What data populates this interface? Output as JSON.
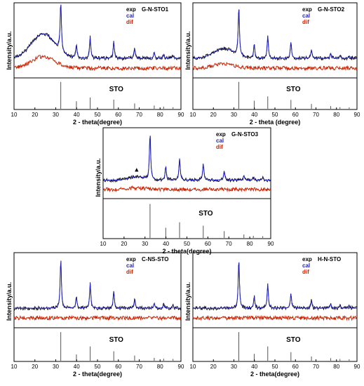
{
  "chart_data": [
    {
      "type": "line",
      "panel_id": "G-N-STO1",
      "sample_label": "G-N-STO1",
      "legend": {
        "exp": "exp",
        "cal": "cal",
        "dif": "dif",
        "placement": "top-right"
      },
      "ylabel": "Intensity/a.u.",
      "xlabel": "2 - theta(degree)",
      "reference_label": "STO",
      "xlim": [
        10,
        90
      ],
      "xticks": [
        "10",
        "20",
        "30",
        "40",
        "50",
        "60",
        "70",
        "80",
        "90"
      ],
      "amorphous_hump": {
        "center": 24,
        "width": 8,
        "height": 0.55
      },
      "marker": null,
      "colors": {
        "exp": "#000000",
        "cal": "#1f1fbf",
        "dif": "#cc2200",
        "ref": "#555555"
      },
      "peaks": [
        {
          "x": 32.4,
          "h": 1.0
        },
        {
          "x": 39.9,
          "h": 0.28
        },
        {
          "x": 46.5,
          "h": 0.42
        },
        {
          "x": 57.8,
          "h": 0.34
        },
        {
          "x": 67.8,
          "h": 0.2
        },
        {
          "x": 77.2,
          "h": 0.12
        },
        {
          "x": 81.7,
          "h": 0.08
        },
        {
          "x": 86.2,
          "h": 0.06
        }
      ]
    },
    {
      "type": "line",
      "panel_id": "G-N-STO2",
      "sample_label": "G-N-STO2",
      "legend": {
        "exp": "exp",
        "cal": "cal",
        "dif": "dif",
        "placement": "top-right"
      },
      "ylabel": "Intensity/a.u.",
      "xlabel": "2 - theta (degree)",
      "reference_label": "STO",
      "xlim": [
        10,
        90
      ],
      "xticks": [
        "10",
        "20",
        "30",
        "40",
        "50",
        "60",
        "70",
        "80",
        "90"
      ],
      "amorphous_hump": {
        "center": 25,
        "width": 7,
        "height": 0.22
      },
      "marker": null,
      "colors": {
        "exp": "#000000",
        "cal": "#1f1fbf",
        "dif": "#cc2200",
        "ref": "#555555"
      },
      "peaks": [
        {
          "x": 32.4,
          "h": 1.0
        },
        {
          "x": 39.9,
          "h": 0.3
        },
        {
          "x": 46.5,
          "h": 0.46
        },
        {
          "x": 57.8,
          "h": 0.33
        },
        {
          "x": 67.8,
          "h": 0.18
        },
        {
          "x": 77.2,
          "h": 0.1
        },
        {
          "x": 81.7,
          "h": 0.06
        },
        {
          "x": 86.2,
          "h": 0.05
        }
      ]
    },
    {
      "type": "line",
      "panel_id": "G-N-STO3",
      "sample_label": "G-N-STO3",
      "legend": {
        "exp": "exp",
        "cal": "cal",
        "dif": "dif",
        "placement": "top-right"
      },
      "ylabel": "Intensity/a.u.",
      "xlabel": "2 - theta(degree)",
      "reference_label": "STO",
      "xlim": [
        10,
        90
      ],
      "xticks": [
        "10",
        "20",
        "30",
        "40",
        "50",
        "60",
        "70",
        "80",
        "90"
      ],
      "amorphous_hump": {
        "center": 26,
        "width": 5,
        "height": 0.08
      },
      "marker": {
        "x": 26,
        "symbol": "▲"
      },
      "colors": {
        "exp": "#000000",
        "cal": "#1f1fbf",
        "dif": "#cc2200",
        "ref": "#555555"
      },
      "peaks": [
        {
          "x": 32.4,
          "h": 1.0
        },
        {
          "x": 39.9,
          "h": 0.3
        },
        {
          "x": 46.5,
          "h": 0.46
        },
        {
          "x": 57.8,
          "h": 0.36
        },
        {
          "x": 67.8,
          "h": 0.2
        },
        {
          "x": 77.2,
          "h": 0.1
        },
        {
          "x": 81.7,
          "h": 0.06
        },
        {
          "x": 86.2,
          "h": 0.05
        }
      ]
    },
    {
      "type": "line",
      "panel_id": "C-NS-STO",
      "sample_label": "C-NS-STO",
      "legend": {
        "exp": "exp",
        "cal": "cal",
        "dif": "dif",
        "placement": "top-right"
      },
      "ylabel": "Intensity/a.u.",
      "xlabel": "2 - theta(degree)",
      "reference_label": "STO",
      "xlim": [
        10,
        90
      ],
      "xticks": [
        "10",
        "20",
        "30",
        "40",
        "50",
        "60",
        "70",
        "80",
        "90"
      ],
      "amorphous_hump": {
        "center": 25,
        "width": 6,
        "height": 0.0
      },
      "marker": null,
      "colors": {
        "exp": "#000000",
        "cal": "#1f1fbf",
        "dif": "#cc2200",
        "ref": "#555555"
      },
      "peaks": [
        {
          "x": 32.4,
          "h": 1.0
        },
        {
          "x": 39.9,
          "h": 0.22
        },
        {
          "x": 46.5,
          "h": 0.5
        },
        {
          "x": 57.8,
          "h": 0.33
        },
        {
          "x": 67.8,
          "h": 0.18
        },
        {
          "x": 77.2,
          "h": 0.1
        },
        {
          "x": 81.7,
          "h": 0.07
        },
        {
          "x": 86.2,
          "h": 0.06
        }
      ]
    },
    {
      "type": "line",
      "panel_id": "H-N-STO",
      "sample_label": "H-N-STO",
      "legend": {
        "exp": "exp",
        "cal": "cal",
        "dif": "dif",
        "placement": "top-right"
      },
      "ylabel": "Intensity/a.u.",
      "xlabel": "2 - theta(degree)",
      "reference_label": "STO",
      "xlim": [
        10,
        90
      ],
      "xticks": [
        "10",
        "20",
        "30",
        "40",
        "50",
        "60",
        "70",
        "80",
        "90"
      ],
      "amorphous_hump": {
        "center": 25,
        "width": 6,
        "height": 0.0
      },
      "marker": null,
      "colors": {
        "exp": "#000000",
        "cal": "#1f1fbf",
        "dif": "#cc2200",
        "ref": "#555555"
      },
      "peaks": [
        {
          "x": 32.4,
          "h": 1.0
        },
        {
          "x": 39.9,
          "h": 0.24
        },
        {
          "x": 46.5,
          "h": 0.5
        },
        {
          "x": 57.8,
          "h": 0.3
        },
        {
          "x": 67.8,
          "h": 0.15
        },
        {
          "x": 77.2,
          "h": 0.09
        },
        {
          "x": 81.7,
          "h": 0.06
        },
        {
          "x": 86.2,
          "h": 0.05
        }
      ]
    }
  ]
}
